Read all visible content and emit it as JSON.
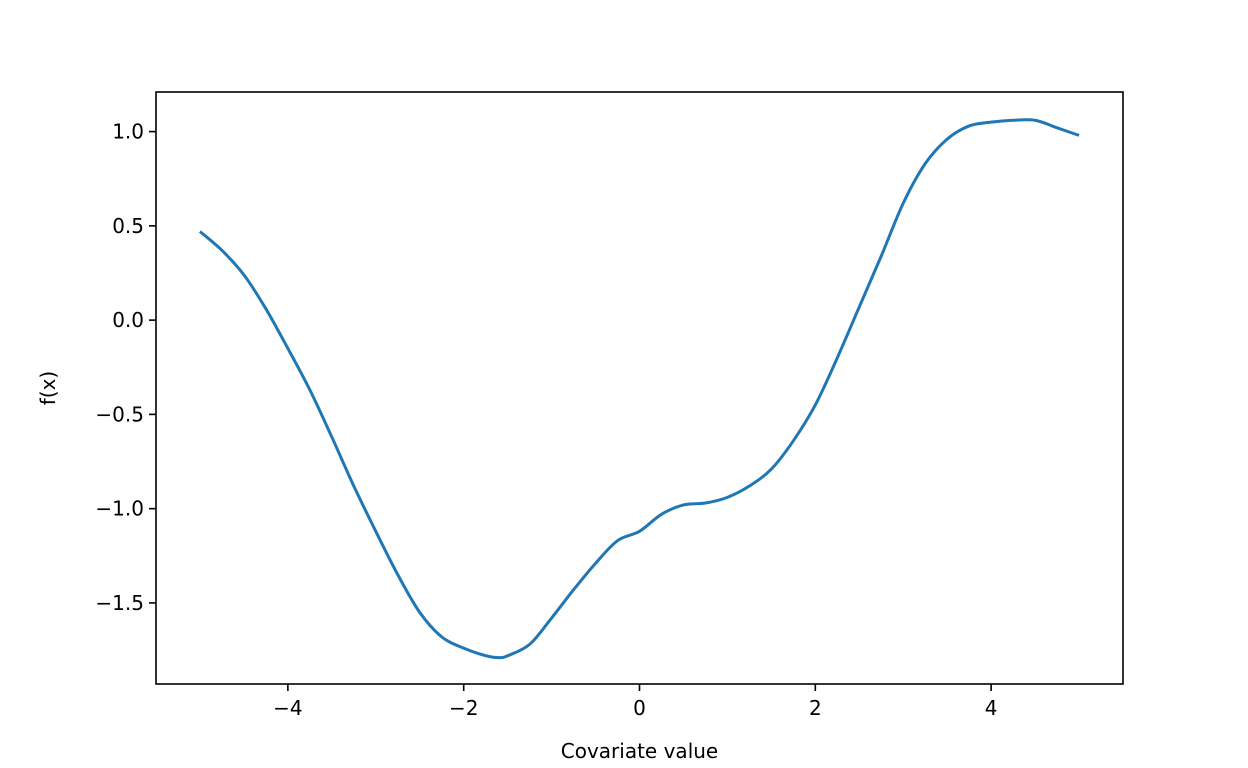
{
  "chart_data": {
    "type": "line",
    "title": "",
    "xlabel": "Covariate value",
    "ylabel": "f(x)",
    "xlim": [
      -5.5,
      5.5
    ],
    "ylim": [
      -1.93,
      1.21
    ],
    "xticks": [
      -4,
      -2,
      0,
      2,
      4
    ],
    "xtick_labels": [
      "−4",
      "−2",
      "0",
      "2",
      "4"
    ],
    "yticks": [
      -1.5,
      -1.0,
      -0.5,
      0.0,
      0.5,
      1.0
    ],
    "ytick_labels": [
      "−1.5",
      "−1.0",
      "−0.5",
      "0.0",
      "0.5",
      "1.0"
    ],
    "grid": false,
    "series": [
      {
        "color": "#1f77b4",
        "x": [
          -5.0,
          -4.75,
          -4.5,
          -4.25,
          -4.0,
          -3.75,
          -3.5,
          -3.25,
          -3.0,
          -2.75,
          -2.5,
          -2.25,
          -2.0,
          -1.75,
          -1.6,
          -1.5,
          -1.25,
          -1.0,
          -0.75,
          -0.5,
          -0.25,
          0.0,
          0.25,
          0.5,
          0.75,
          1.0,
          1.25,
          1.5,
          1.75,
          2.0,
          2.25,
          2.5,
          2.75,
          3.0,
          3.25,
          3.5,
          3.75,
          4.0,
          4.25,
          4.5,
          4.75,
          5.0
        ],
        "y": [
          0.47,
          0.37,
          0.24,
          0.06,
          -0.15,
          -0.37,
          -0.62,
          -0.88,
          -1.12,
          -1.35,
          -1.55,
          -1.68,
          -1.74,
          -1.78,
          -1.79,
          -1.78,
          -1.72,
          -1.58,
          -1.43,
          -1.29,
          -1.17,
          -1.12,
          -1.03,
          -0.98,
          -0.97,
          -0.94,
          -0.88,
          -0.79,
          -0.64,
          -0.45,
          -0.2,
          0.07,
          0.34,
          0.62,
          0.83,
          0.96,
          1.03,
          1.05,
          1.06,
          1.06,
          1.02,
          0.98
        ]
      }
    ]
  }
}
